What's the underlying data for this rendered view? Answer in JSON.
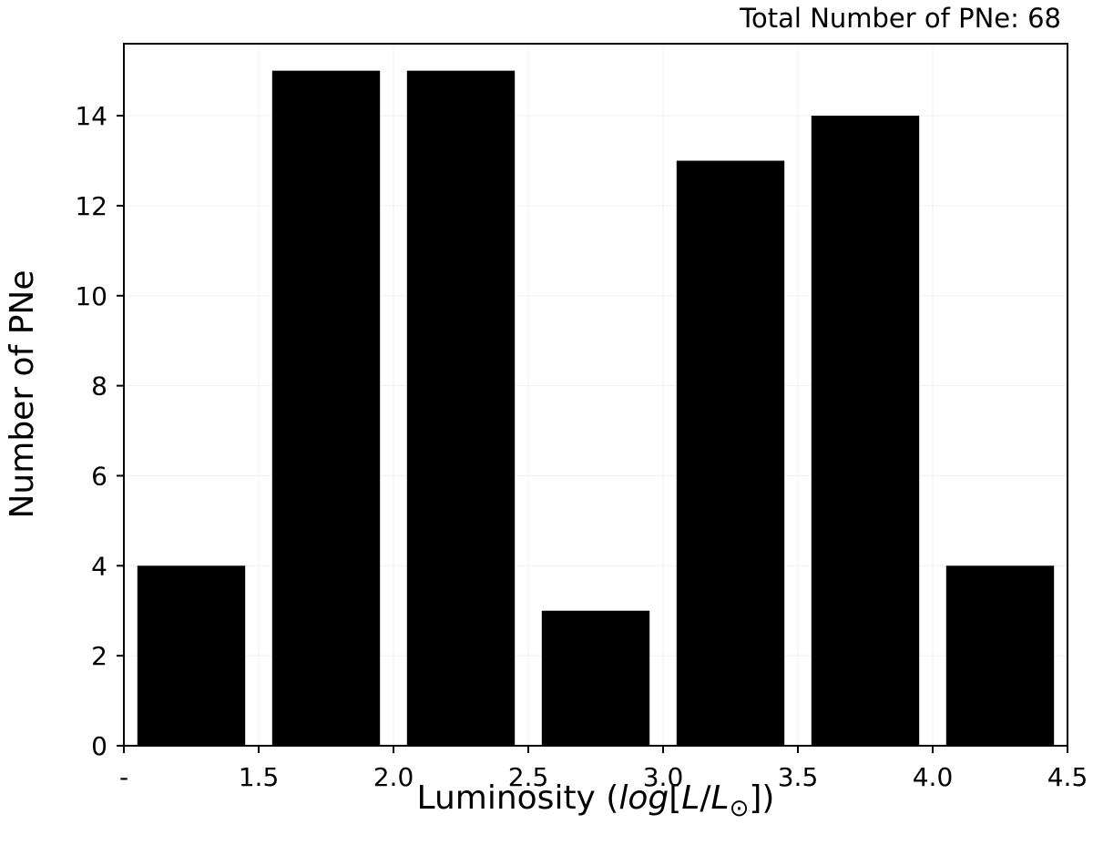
{
  "chart_data": {
    "type": "bar",
    "annotation": "Total Number of PNe: 68",
    "xlabel_prefix": "Luminosity (",
    "xlabel_log": "log",
    "xlabel_open_bracket": "[",
    "xlabel_L": "L",
    "xlabel_slash": "/",
    "xlabel_Lsun": "L",
    "xlabel_sun_symbol": "⊙",
    "xlabel_suffix": "])",
    "ylabel": "Number of PNe",
    "xlim": [
      1.0,
      4.5
    ],
    "ylim": [
      0,
      15.6
    ],
    "xticks": [
      {
        "value": 1.0,
        "label": "-"
      },
      {
        "value": 1.5,
        "label": "1.5"
      },
      {
        "value": 2.0,
        "label": "2.0"
      },
      {
        "value": 2.5,
        "label": "2.5"
      },
      {
        "value": 3.0,
        "label": "3.0"
      },
      {
        "value": 3.5,
        "label": "3.5"
      },
      {
        "value": 4.0,
        "label": "4.0"
      },
      {
        "value": 4.5,
        "label": "4.5"
      }
    ],
    "yticks": [
      {
        "value": 0,
        "label": "0"
      },
      {
        "value": 2,
        "label": "2"
      },
      {
        "value": 4,
        "label": "4"
      },
      {
        "value": 6,
        "label": "6"
      },
      {
        "value": 8,
        "label": "8"
      },
      {
        "value": 10,
        "label": "10"
      },
      {
        "value": 12,
        "label": "12"
      },
      {
        "value": 14,
        "label": "14"
      }
    ],
    "bars": [
      {
        "x0": 1.05,
        "x1": 1.45,
        "value": 4
      },
      {
        "x0": 1.55,
        "x1": 1.95,
        "value": 15
      },
      {
        "x0": 2.05,
        "x1": 2.45,
        "value": 15
      },
      {
        "x0": 2.55,
        "x1": 2.95,
        "value": 3
      },
      {
        "x0": 3.05,
        "x1": 3.45,
        "value": 13
      },
      {
        "x0": 3.55,
        "x1": 3.95,
        "value": 14
      },
      {
        "x0": 4.05,
        "x1": 4.45,
        "value": 4
      }
    ],
    "grid": true,
    "bar_color": "#000000",
    "grid_color": "#f0f0f0"
  }
}
